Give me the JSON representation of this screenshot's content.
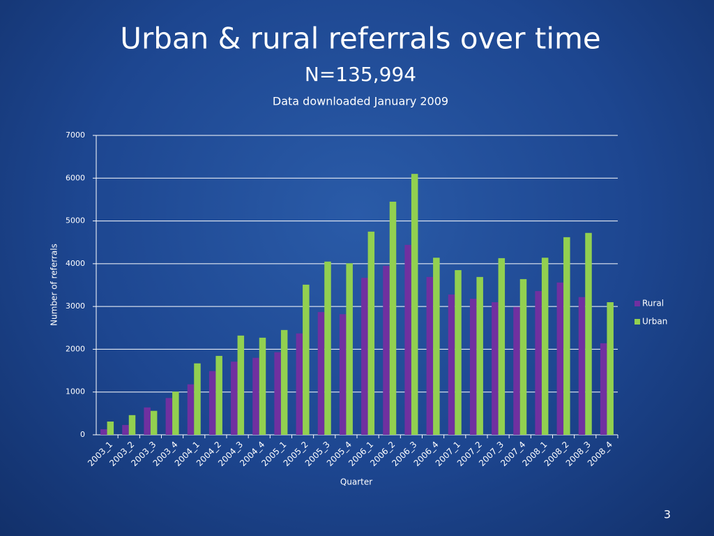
{
  "chart_data": {
    "type": "bar",
    "title": "Urban & rural referrals over time",
    "subtitle": "N=135,994",
    "annotations": [
      "Data downloaded January 2009"
    ],
    "x_label": "Quarter",
    "y_label": "Number of referrals",
    "categories": [
      "2003_1",
      "2003_2",
      "2003_3",
      "2003_4",
      "2004_1",
      "2004_2",
      "2004_3",
      "2004_4",
      "2005_1",
      "2005_2",
      "2005_3",
      "2005_4",
      "2006_1",
      "2006_2",
      "2006_3",
      "2006_4",
      "2007_1",
      "2007_2",
      "2007_3",
      "2007_4",
      "2008_1",
      "2008_2",
      "2008_3",
      "2008_4"
    ],
    "series": [
      {
        "name": "Rural",
        "color": "#7030a0",
        "values": [
          130,
          230,
          640,
          860,
          1180,
          1490,
          1710,
          1800,
          1930,
          2370,
          2870,
          2820,
          3670,
          3950,
          4440,
          3690,
          3280,
          3180,
          3100,
          2990,
          3360,
          3560,
          3220,
          2140
        ]
      },
      {
        "name": "Urban",
        "color": "#92d050",
        "values": [
          310,
          460,
          560,
          1010,
          1670,
          1845,
          2320,
          2270,
          2450,
          3510,
          4050,
          4010,
          4750,
          5450,
          6100,
          4140,
          3850,
          3690,
          4130,
          3640,
          4140,
          4620,
          4720,
          3100
        ]
      }
    ],
    "ylim": [
      0,
      7000
    ],
    "yticks": [
      0,
      1000,
      2000,
      3000,
      4000,
      5000,
      6000,
      7000
    ],
    "grid": true,
    "legend": "right"
  },
  "page_number": 3
}
